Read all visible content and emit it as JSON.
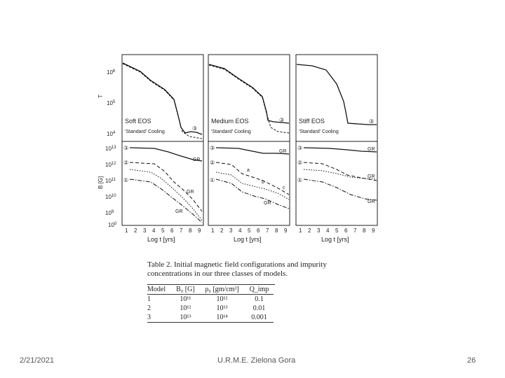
{
  "figure": {
    "panels": [
      {
        "eos_label": "Soft EOS",
        "cooling_label": "'Standard' Cooling",
        "marker": "③"
      },
      {
        "eos_label": "Medium EOS",
        "cooling_label": "'Standard' Cooling",
        "marker": "③"
      },
      {
        "eos_label": "Stiff EOS",
        "cooling_label": "'Standard' Cooling",
        "marker": "③"
      }
    ],
    "temp_axis": {
      "label": "T",
      "ticks": [
        "10",
        "10",
        "10"
      ],
      "exps": [
        "6",
        "5",
        "4"
      ]
    },
    "field_axis": {
      "label": "B [G]",
      "ticks": [
        "10",
        "10",
        "10",
        "10",
        "10"
      ],
      "exps": [
        "13",
        "12",
        "11",
        "10",
        "9"
      ],
      "zero": "10",
      "zero_exp": "0"
    },
    "x_axis": {
      "label": "Log t [yrs]",
      "ticks": [
        "1",
        "2",
        "3",
        "4",
        "5",
        "6",
        "7",
        "8",
        "9"
      ]
    },
    "curve_labels": {
      "gr": "GR",
      "a": "a",
      "b": "b",
      "c": "c"
    },
    "markers": {
      "m1": "①",
      "m2": "②",
      "m3": "③"
    }
  },
  "table": {
    "caption": "Table 2. Initial magnetic field configurations and impurity concentrations in our three classes of models.",
    "headers": [
      "Model",
      "B₀ [G]",
      "ρ₀ [gm/cm³]",
      "Q_imp"
    ],
    "rows": [
      [
        "1",
        "10¹¹",
        "10¹²",
        "0.1"
      ],
      [
        "2",
        "10¹²",
        "10¹³",
        "0.01"
      ],
      [
        "3",
        "10¹³",
        "10¹⁴",
        "0.001"
      ]
    ]
  },
  "footer": {
    "date": "2/21/2021",
    "center": "U.R.M.E. Zielona Gora",
    "page": "26"
  }
}
